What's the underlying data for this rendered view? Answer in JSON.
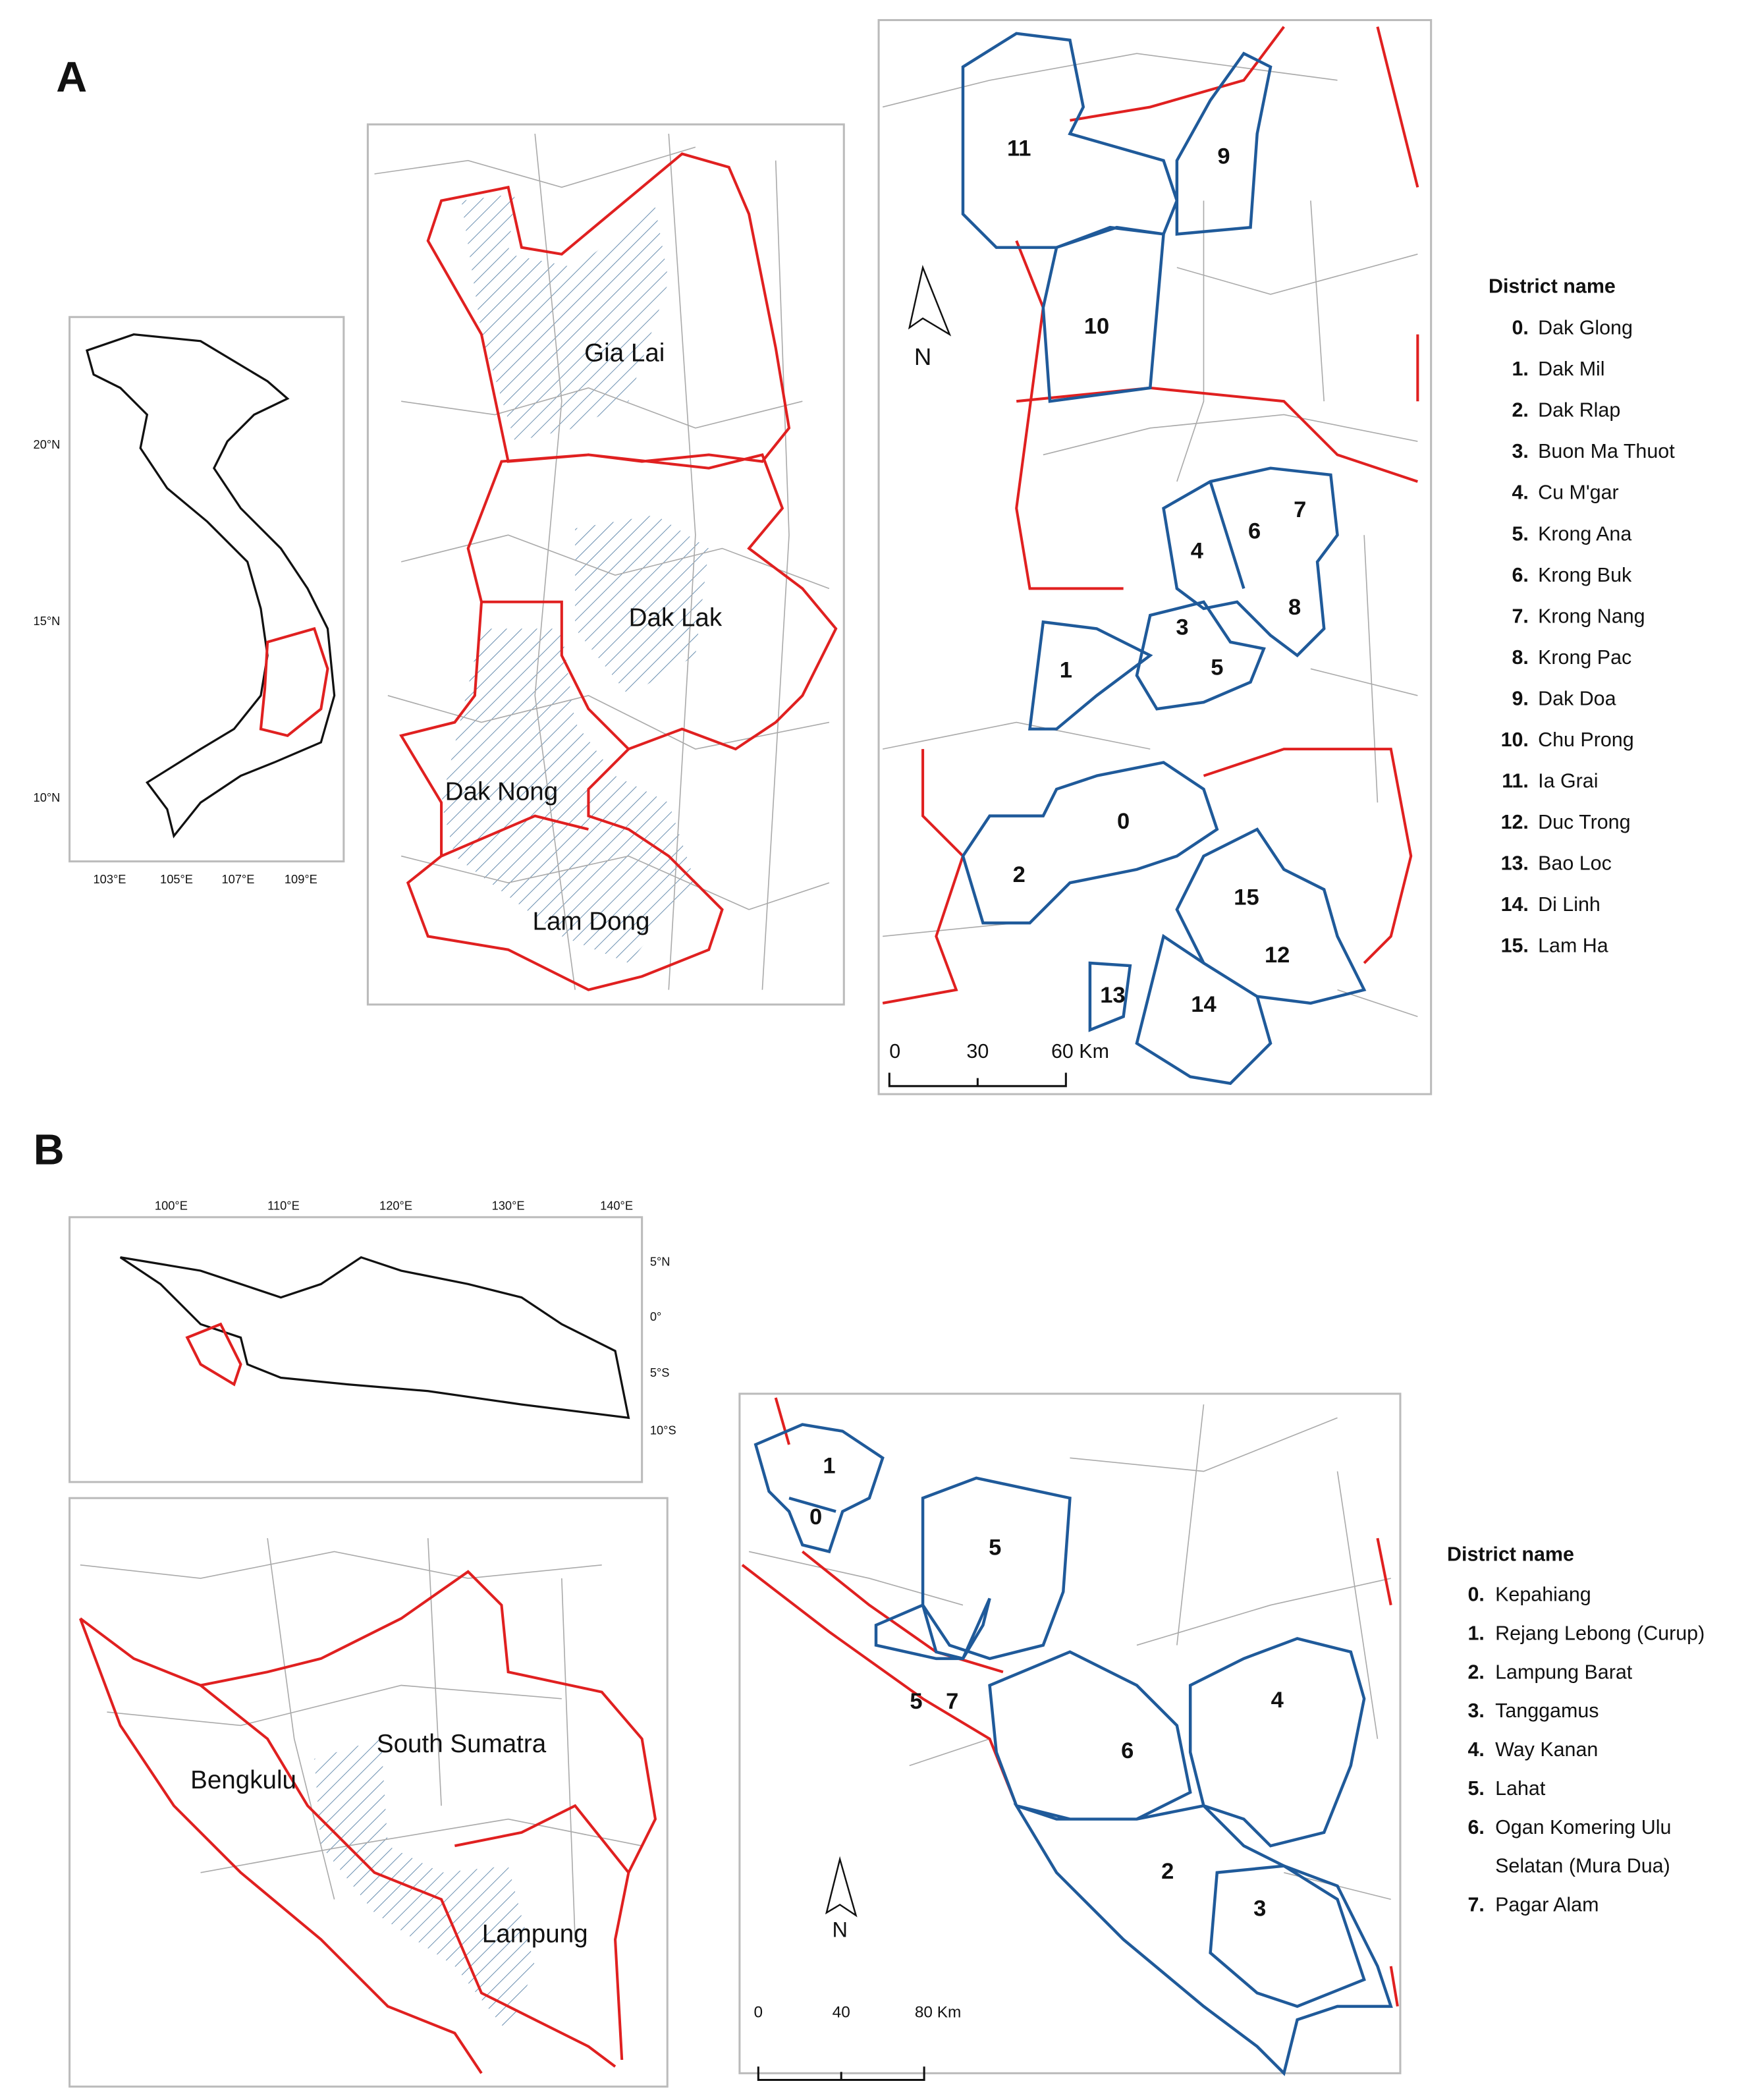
{
  "panel_a": {
    "label": "A",
    "inset": {
      "lat_labels": [
        "20°N",
        "15°N",
        "10°N"
      ],
      "lon_labels": [
        "103°E",
        "105°E",
        "107°E",
        "109°E"
      ]
    },
    "regions": [
      "Gia Lai",
      "Dak Lak",
      "Dak Nong",
      "Lam Dong"
    ],
    "north": "N",
    "map_labels": [
      "11",
      "9",
      "10",
      "7",
      "6",
      "4",
      "8",
      "3",
      "5",
      "1",
      "0",
      "2",
      "15",
      "12",
      "13",
      "14"
    ],
    "scale_bar": [
      "0",
      "30",
      "60 Km"
    ],
    "legend": {
      "title": "District name",
      "items": [
        {
          "number": "0.",
          "name": [
            "Dak Glong"
          ]
        },
        {
          "number": "1.",
          "name": [
            "Dak Mil"
          ]
        },
        {
          "number": "2.",
          "name": [
            "Dak Rlap"
          ]
        },
        {
          "number": "3.",
          "name": [
            "Buon Ma Thuot"
          ]
        },
        {
          "number": "4.",
          "name": [
            "Cu M'gar"
          ]
        },
        {
          "number": "5.",
          "name": [
            "Krong Ana"
          ]
        },
        {
          "number": "6.",
          "name": [
            "Krong Buk"
          ]
        },
        {
          "number": "7.",
          "name": [
            "Krong Nang"
          ]
        },
        {
          "number": "8.",
          "name": [
            "Krong Pac"
          ]
        },
        {
          "number": "9.",
          "name": [
            "Dak Doa"
          ]
        },
        {
          "number": "10.",
          "name": [
            "Chu Prong"
          ]
        },
        {
          "number": "11.",
          "name": [
            "Ia Grai"
          ]
        },
        {
          "number": "12.",
          "name": [
            "Duc Trong"
          ]
        },
        {
          "number": "13.",
          "name": [
            "Bao Loc"
          ]
        },
        {
          "number": "14.",
          "name": [
            "Di Linh"
          ]
        },
        {
          "number": "15.",
          "name": [
            "Lam Ha"
          ]
        }
      ]
    }
  },
  "panel_b": {
    "label": "B",
    "inset": {
      "lon_labels": [
        "100°E",
        "110°E",
        "120°E",
        "130°E",
        "140°E"
      ],
      "lat_labels": [
        "5°N",
        "0°",
        "5°S",
        "10°S"
      ]
    },
    "regions": [
      "Bengkulu",
      "South Sumatra",
      "Lampung"
    ],
    "north": "N",
    "map_labels": [
      "1",
      "0",
      "5",
      "5",
      "7",
      "4",
      "6",
      "2",
      "3"
    ],
    "scale_bar": [
      "0",
      "40",
      "80 Km"
    ],
    "legend": {
      "title": "District name",
      "items": [
        {
          "number": "0.",
          "name": [
            "Kepahiang"
          ]
        },
        {
          "number": "1.",
          "name": [
            "Rejang Lebong (Curup)"
          ]
        },
        {
          "number": "2.",
          "name": [
            "Lampung Barat"
          ]
        },
        {
          "number": "3.",
          "name": [
            "Tanggamus"
          ]
        },
        {
          "number": "4.",
          "name": [
            "Way Kanan"
          ]
        },
        {
          "number": "5.",
          "name": [
            "Lahat"
          ]
        },
        {
          "number": "6.",
          "name": [
            "Ogan Komering Ulu",
            "Selatan (Mura Dua)"
          ]
        },
        {
          "number": "7.",
          "name": [
            "Pagar Alam"
          ]
        }
      ]
    }
  }
}
